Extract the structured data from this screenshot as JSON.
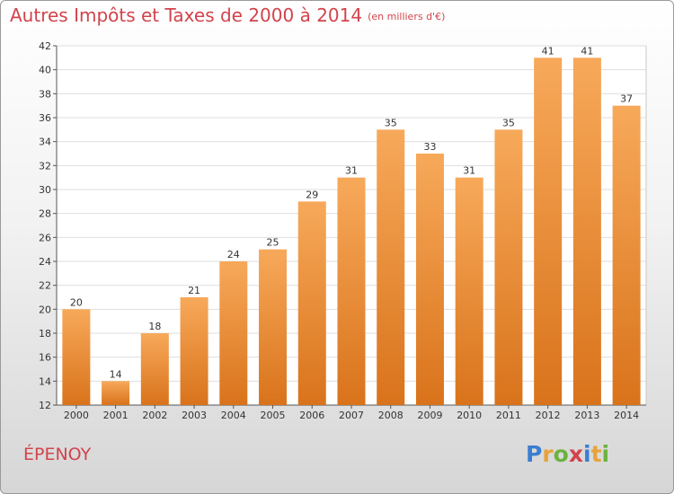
{
  "title": "Autres Impôts et Taxes de 2000 à 2014",
  "unit_label": "(en milliers d'€)",
  "city": "ÉPENOY",
  "logo": {
    "text": "Proxiti",
    "letters": [
      {
        "ch": "P",
        "color": "#3b7ed1"
      },
      {
        "ch": "r",
        "color": "#e9a23b"
      },
      {
        "ch": "o",
        "color": "#6bb33f"
      },
      {
        "ch": "x",
        "color": "#d2434c"
      },
      {
        "ch": "i",
        "color": "#3b7ed1"
      },
      {
        "ch": "t",
        "color": "#e9a23b"
      },
      {
        "ch": "i",
        "color": "#6bb33f"
      }
    ]
  },
  "colors": {
    "bar_top": "#f7a95a",
    "bar_bottom": "#d9731b",
    "title": "#d2434c"
  },
  "chart_data": {
    "type": "bar",
    "title": "Autres Impôts et Taxes de 2000 à 2014",
    "xlabel": "",
    "ylabel": "",
    "categories": [
      "2000",
      "2001",
      "2002",
      "2003",
      "2004",
      "2005",
      "2006",
      "2007",
      "2008",
      "2009",
      "2010",
      "2011",
      "2012",
      "2013",
      "2014"
    ],
    "values": [
      20,
      14,
      18,
      21,
      24,
      25,
      29,
      31,
      35,
      33,
      31,
      35,
      41,
      41,
      37
    ],
    "ylim": [
      12,
      42
    ],
    "yticks": [
      12,
      14,
      16,
      18,
      20,
      22,
      24,
      26,
      28,
      30,
      32,
      34,
      36,
      38,
      40,
      42
    ],
    "grid": true,
    "data_labels": true
  }
}
